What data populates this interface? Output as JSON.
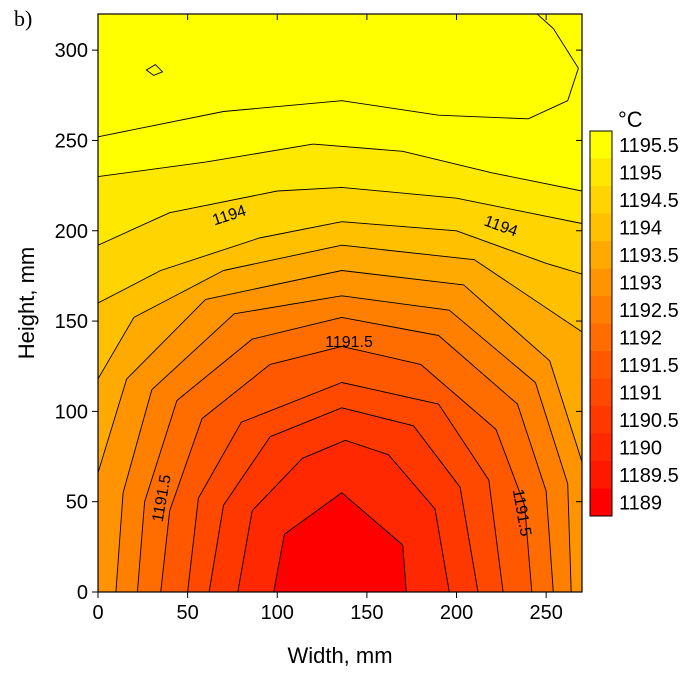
{
  "panel_label": "b)",
  "chart_data": {
    "type": "contour",
    "xlabel": "Width, mm",
    "ylabel": "Height, mm",
    "xlim": [
      0,
      270
    ],
    "ylim": [
      0,
      320
    ],
    "x_ticks": [
      0,
      50,
      100,
      150,
      200,
      250
    ],
    "y_ticks": [
      0,
      50,
      100,
      150,
      200,
      250,
      300
    ],
    "grid": false,
    "colorbar": {
      "title": "°C",
      "levels": [
        1195.5,
        1195,
        1194.5,
        1194,
        1193.5,
        1193,
        1192.5,
        1192,
        1191.5,
        1191,
        1190.5,
        1190,
        1189.5,
        1189
      ],
      "colors": [
        "#ffff00",
        "#ffe800",
        "#ffd400",
        "#ffc000",
        "#ffaa00",
        "#ff9400",
        "#ff8000",
        "#ff6c00",
        "#ff5800",
        "#ff4800",
        "#ff3800",
        "#ff2800",
        "#ff1800",
        "#ff0000"
      ],
      "placement": "right"
    },
    "contour_labels": [
      {
        "text": "1194",
        "x": 73,
        "y": 209,
        "angle": -18
      },
      {
        "text": "1194",
        "x": 225,
        "y": 203,
        "angle": 20
      },
      {
        "text": "1191.5",
        "x": 140,
        "y": 139,
        "angle": 0
      },
      {
        "text": "1191.5",
        "x": 35,
        "y": 52,
        "angle": -80
      },
      {
        "text": "1191.5",
        "x": 237,
        "y": 44,
        "angle": 80
      }
    ],
    "contours": [
      {
        "level": 1189.5,
        "points": [
          [
            98,
            0
          ],
          [
            104,
            32
          ],
          [
            136,
            55
          ],
          [
            170,
            26
          ],
          [
            172,
            0
          ]
        ]
      },
      {
        "level": 1190,
        "points": [
          [
            78,
            0
          ],
          [
            86,
            45
          ],
          [
            114,
            74
          ],
          [
            138,
            84
          ],
          [
            162,
            76
          ],
          [
            188,
            46
          ],
          [
            196,
            0
          ]
        ]
      },
      {
        "level": 1190.5,
        "points": [
          [
            62,
            0
          ],
          [
            70,
            48
          ],
          [
            96,
            86
          ],
          [
            136,
            102
          ],
          [
            176,
            92
          ],
          [
            202,
            58
          ],
          [
            212,
            0
          ]
        ]
      },
      {
        "level": 1191,
        "points": [
          [
            50,
            0
          ],
          [
            56,
            52
          ],
          [
            80,
            94
          ],
          [
            136,
            116
          ],
          [
            190,
            104
          ],
          [
            218,
            62
          ],
          [
            226,
            0
          ]
        ]
      },
      {
        "level": 1191.5,
        "points": [
          [
            35,
            0
          ],
          [
            40,
            45
          ],
          [
            58,
            96
          ],
          [
            96,
            126
          ],
          [
            136,
            136
          ],
          [
            180,
            126
          ],
          [
            222,
            90
          ],
          [
            238,
            48
          ],
          [
            242,
            0
          ]
        ]
      },
      {
        "level": 1192,
        "points": [
          [
            22,
            0
          ],
          [
            26,
            50
          ],
          [
            44,
            106
          ],
          [
            86,
            140
          ],
          [
            136,
            152
          ],
          [
            190,
            142
          ],
          [
            234,
            104
          ],
          [
            250,
            56
          ],
          [
            254,
            0
          ]
        ]
      },
      {
        "level": 1192.5,
        "points": [
          [
            10,
            0
          ],
          [
            14,
            55
          ],
          [
            30,
            112
          ],
          [
            76,
            154
          ],
          [
            136,
            164
          ],
          [
            196,
            156
          ],
          [
            244,
            116
          ],
          [
            262,
            60
          ],
          [
            264,
            0
          ]
        ]
      },
      {
        "level": 1193,
        "points": [
          [
            0,
            66
          ],
          [
            16,
            118
          ],
          [
            60,
            162
          ],
          [
            136,
            178
          ],
          [
            204,
            170
          ],
          [
            252,
            128
          ],
          [
            270,
            72
          ]
        ]
      },
      {
        "level": 1193.5,
        "points": [
          [
            0,
            118
          ],
          [
            20,
            152
          ],
          [
            70,
            178
          ],
          [
            136,
            192
          ],
          [
            210,
            184
          ],
          [
            270,
            144
          ]
        ]
      },
      {
        "level": 1194,
        "points": [
          [
            0,
            160
          ],
          [
            35,
            178
          ],
          [
            90,
            196
          ],
          [
            136,
            205
          ],
          [
            200,
            200
          ],
          [
            250,
            182
          ],
          [
            270,
            176
          ]
        ]
      },
      {
        "level": 1194.5,
        "points": [
          [
            0,
            192
          ],
          [
            40,
            210
          ],
          [
            100,
            222
          ],
          [
            136,
            224
          ],
          [
            200,
            218
          ],
          [
            270,
            204
          ]
        ]
      },
      {
        "level": 1195,
        "points": [
          [
            0,
            230
          ],
          [
            60,
            238
          ],
          [
            120,
            248
          ],
          [
            170,
            244
          ],
          [
            220,
            232
          ],
          [
            270,
            222
          ]
        ]
      },
      {
        "level": 1195.5,
        "points": [
          [
            0,
            252
          ],
          [
            70,
            266
          ],
          [
            136,
            272
          ],
          [
            190,
            264
          ],
          [
            240,
            262
          ],
          [
            262,
            272
          ],
          [
            268,
            290
          ],
          [
            254,
            312
          ],
          [
            245,
            320
          ]
        ]
      }
    ],
    "local_minimum_contour": {
      "level": 1195.5,
      "points": [
        [
          27,
          289
        ],
        [
          32,
          292
        ],
        [
          36,
          288
        ],
        [
          31,
          286
        ],
        [
          27,
          289
        ]
      ]
    }
  }
}
